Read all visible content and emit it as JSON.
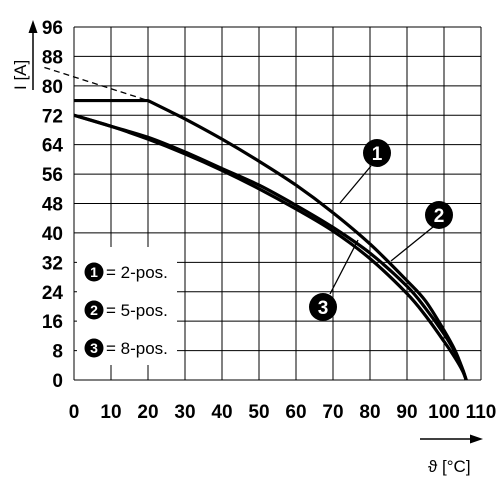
{
  "chart_data": {
    "type": "line",
    "ylabel": "I [A]",
    "xlabel": "ϑ [°C]",
    "xlim": [
      0,
      110
    ],
    "ylim": [
      0,
      96
    ],
    "x_ticks": [
      0,
      10,
      20,
      30,
      40,
      50,
      60,
      70,
      80,
      90,
      100,
      110
    ],
    "y_ticks": [
      0,
      8,
      16,
      24,
      32,
      40,
      48,
      56,
      64,
      72,
      80,
      88,
      96
    ],
    "grid": true,
    "legend_position": "bottom-left",
    "series": [
      {
        "name": "2-pos.",
        "badge": "1",
        "points": [
          [
            0,
            76
          ],
          [
            20,
            76
          ],
          [
            25,
            73.5
          ],
          [
            30,
            71
          ],
          [
            40,
            65.5
          ],
          [
            50,
            59.5
          ],
          [
            60,
            53
          ],
          [
            70,
            45.5
          ],
          [
            80,
            37
          ],
          [
            90,
            27
          ],
          [
            95,
            21.5
          ],
          [
            100,
            13.5
          ],
          [
            103,
            8
          ],
          [
            105,
            3
          ],
          [
            106,
            0
          ]
        ]
      },
      {
        "name": "5-pos.",
        "badge": "2",
        "points": [
          [
            0,
            72
          ],
          [
            10,
            69
          ],
          [
            20,
            66
          ],
          [
            30,
            62
          ],
          [
            40,
            57.5
          ],
          [
            50,
            53
          ],
          [
            60,
            47.5
          ],
          [
            70,
            41.5
          ],
          [
            80,
            34.5
          ],
          [
            90,
            25.5
          ],
          [
            95,
            19.5
          ],
          [
            100,
            12.5
          ],
          [
            103,
            7.5
          ],
          [
            105,
            3
          ],
          [
            106,
            0
          ]
        ]
      },
      {
        "name": "8-pos.",
        "badge": "3",
        "points": [
          [
            0,
            72
          ],
          [
            10,
            69
          ],
          [
            20,
            65.5
          ],
          [
            30,
            61.5
          ],
          [
            40,
            57
          ],
          [
            50,
            52
          ],
          [
            60,
            46.5
          ],
          [
            70,
            40.5
          ],
          [
            80,
            33
          ],
          [
            90,
            23.5
          ],
          [
            95,
            17.5
          ],
          [
            100,
            10.5
          ],
          [
            103,
            6
          ],
          [
            105,
            2.5
          ],
          [
            106,
            0
          ]
        ]
      }
    ],
    "extrapolation": {
      "points": [
        [
          -8,
          85
        ],
        [
          20,
          76
        ]
      ]
    }
  }
}
